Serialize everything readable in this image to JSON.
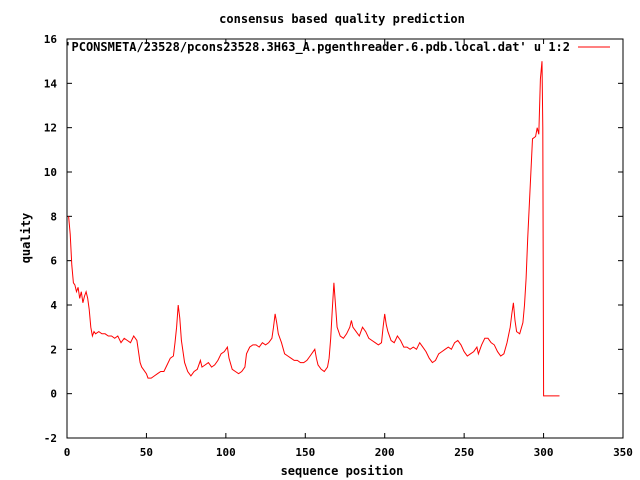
{
  "chart_data": {
    "type": "line",
    "title": "consensus based quality prediction",
    "xlabel": "sequence position",
    "ylabel": "quality",
    "xlim": [
      0,
      350
    ],
    "ylim": [
      -2,
      16
    ],
    "xticks": [
      0,
      50,
      100,
      150,
      200,
      250,
      300,
      350
    ],
    "yticks": [
      -2,
      0,
      2,
      4,
      6,
      8,
      10,
      12,
      14,
      16
    ],
    "grid": false,
    "legend_position": "top-right",
    "series": [
      {
        "name": "'PCONSMETA/23528/pcons23528.3H63_A.pgenthreader.6.pdb.local.dat' u 1:2",
        "color": "#ff0000",
        "points": [
          [
            1,
            8.0
          ],
          [
            2,
            7.2
          ],
          [
            3,
            5.8
          ],
          [
            4,
            5.0
          ],
          [
            5,
            4.9
          ],
          [
            6,
            4.6
          ],
          [
            7,
            4.8
          ],
          [
            8,
            4.3
          ],
          [
            9,
            4.6
          ],
          [
            10,
            4.1
          ],
          [
            11,
            4.4
          ],
          [
            12,
            4.6
          ],
          [
            13,
            4.3
          ],
          [
            14,
            3.8
          ],
          [
            15,
            3.0
          ],
          [
            16,
            2.6
          ],
          [
            17,
            2.8
          ],
          [
            18,
            2.7
          ],
          [
            20,
            2.8
          ],
          [
            22,
            2.7
          ],
          [
            24,
            2.7
          ],
          [
            26,
            2.6
          ],
          [
            28,
            2.6
          ],
          [
            30,
            2.5
          ],
          [
            32,
            2.6
          ],
          [
            34,
            2.3
          ],
          [
            36,
            2.5
          ],
          [
            38,
            2.4
          ],
          [
            40,
            2.3
          ],
          [
            42,
            2.6
          ],
          [
            44,
            2.4
          ],
          [
            45,
            1.9
          ],
          [
            46,
            1.4
          ],
          [
            47,
            1.2
          ],
          [
            48,
            1.1
          ],
          [
            50,
            0.9
          ],
          [
            51,
            0.7
          ],
          [
            53,
            0.7
          ],
          [
            55,
            0.8
          ],
          [
            57,
            0.9
          ],
          [
            59,
            1.0
          ],
          [
            61,
            1.0
          ],
          [
            63,
            1.3
          ],
          [
            65,
            1.6
          ],
          [
            67,
            1.7
          ],
          [
            68,
            2.3
          ],
          [
            69,
            3.0
          ],
          [
            70,
            4.0
          ],
          [
            71,
            3.4
          ],
          [
            72,
            2.4
          ],
          [
            74,
            1.4
          ],
          [
            76,
            1.0
          ],
          [
            78,
            0.8
          ],
          [
            80,
            1.0
          ],
          [
            82,
            1.1
          ],
          [
            84,
            1.5
          ],
          [
            85,
            1.2
          ],
          [
            87,
            1.3
          ],
          [
            89,
            1.4
          ],
          [
            91,
            1.2
          ],
          [
            93,
            1.3
          ],
          [
            95,
            1.5
          ],
          [
            97,
            1.8
          ],
          [
            99,
            1.9
          ],
          [
            101,
            2.1
          ],
          [
            102,
            1.6
          ],
          [
            104,
            1.1
          ],
          [
            106,
            1.0
          ],
          [
            108,
            0.9
          ],
          [
            110,
            1.0
          ],
          [
            112,
            1.2
          ],
          [
            113,
            1.8
          ],
          [
            115,
            2.1
          ],
          [
            117,
            2.2
          ],
          [
            119,
            2.2
          ],
          [
            121,
            2.1
          ],
          [
            123,
            2.3
          ],
          [
            125,
            2.2
          ],
          [
            127,
            2.3
          ],
          [
            129,
            2.5
          ],
          [
            130,
            3.0
          ],
          [
            131,
            3.6
          ],
          [
            132,
            3.2
          ],
          [
            133,
            2.7
          ],
          [
            135,
            2.3
          ],
          [
            137,
            1.8
          ],
          [
            139,
            1.7
          ],
          [
            141,
            1.6
          ],
          [
            143,
            1.5
          ],
          [
            145,
            1.5
          ],
          [
            147,
            1.4
          ],
          [
            149,
            1.4
          ],
          [
            151,
            1.5
          ],
          [
            153,
            1.7
          ],
          [
            155,
            1.9
          ],
          [
            156,
            2.0
          ],
          [
            157,
            1.6
          ],
          [
            158,
            1.3
          ],
          [
            160,
            1.1
          ],
          [
            162,
            1.0
          ],
          [
            164,
            1.2
          ],
          [
            165,
            1.6
          ],
          [
            166,
            2.5
          ],
          [
            167,
            3.8
          ],
          [
            168,
            5.0
          ],
          [
            169,
            4.0
          ],
          [
            170,
            3.0
          ],
          [
            172,
            2.6
          ],
          [
            174,
            2.5
          ],
          [
            176,
            2.7
          ],
          [
            178,
            3.0
          ],
          [
            179,
            3.3
          ],
          [
            180,
            3.0
          ],
          [
            182,
            2.8
          ],
          [
            184,
            2.6
          ],
          [
            186,
            3.0
          ],
          [
            188,
            2.8
          ],
          [
            190,
            2.5
          ],
          [
            192,
            2.4
          ],
          [
            194,
            2.3
          ],
          [
            196,
            2.2
          ],
          [
            198,
            2.3
          ],
          [
            199,
            3.0
          ],
          [
            200,
            3.6
          ],
          [
            201,
            3.1
          ],
          [
            202,
            2.8
          ],
          [
            204,
            2.4
          ],
          [
            206,
            2.3
          ],
          [
            208,
            2.6
          ],
          [
            210,
            2.4
          ],
          [
            212,
            2.1
          ],
          [
            214,
            2.1
          ],
          [
            216,
            2.0
          ],
          [
            218,
            2.1
          ],
          [
            220,
            2.0
          ],
          [
            222,
            2.3
          ],
          [
            224,
            2.1
          ],
          [
            226,
            1.9
          ],
          [
            228,
            1.6
          ],
          [
            230,
            1.4
          ],
          [
            232,
            1.5
          ],
          [
            234,
            1.8
          ],
          [
            236,
            1.9
          ],
          [
            238,
            2.0
          ],
          [
            240,
            2.1
          ],
          [
            242,
            2.0
          ],
          [
            244,
            2.3
          ],
          [
            246,
            2.4
          ],
          [
            248,
            2.2
          ],
          [
            250,
            1.9
          ],
          [
            252,
            1.7
          ],
          [
            254,
            1.8
          ],
          [
            256,
            1.9
          ],
          [
            258,
            2.1
          ],
          [
            259,
            1.8
          ],
          [
            261,
            2.2
          ],
          [
            263,
            2.5
          ],
          [
            265,
            2.5
          ],
          [
            267,
            2.3
          ],
          [
            269,
            2.2
          ],
          [
            271,
            1.9
          ],
          [
            273,
            1.7
          ],
          [
            275,
            1.8
          ],
          [
            277,
            2.3
          ],
          [
            279,
            3.0
          ],
          [
            280,
            3.6
          ],
          [
            281,
            4.1
          ],
          [
            282,
            3.3
          ],
          [
            283,
            2.8
          ],
          [
            285,
            2.7
          ],
          [
            287,
            3.2
          ],
          [
            288,
            4.0
          ],
          [
            289,
            5.2
          ],
          [
            290,
            7.0
          ],
          [
            291,
            8.5
          ],
          [
            292,
            10.0
          ],
          [
            293,
            11.5
          ],
          [
            295,
            11.6
          ],
          [
            296,
            12.0
          ],
          [
            297,
            11.7
          ],
          [
            298,
            14.2
          ],
          [
            299,
            15.0
          ],
          [
            299.5,
            12.0
          ],
          [
            300,
            -0.1
          ],
          [
            310,
            -0.1
          ]
        ]
      }
    ]
  }
}
